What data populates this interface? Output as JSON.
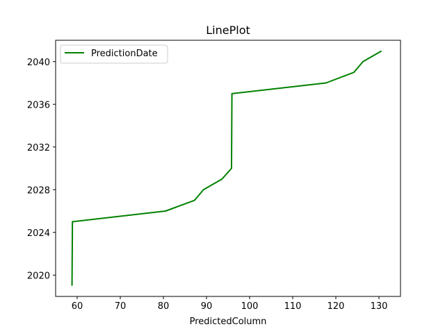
{
  "chart_data": {
    "type": "line",
    "title": "LinePlot",
    "xlabel": "PredictedColumn",
    "ylabel": "",
    "xlim": [
      55,
      135
    ],
    "ylim": [
      2018,
      2042
    ],
    "xticks": [
      60,
      70,
      80,
      90,
      100,
      110,
      120,
      130
    ],
    "yticks": [
      2020,
      2024,
      2028,
      2032,
      2036,
      2040
    ],
    "grid": false,
    "legend_position": "upper-left",
    "series": [
      {
        "name": "PredictionDate",
        "color": "#008000",
        "points": [
          {
            "x": 58.8,
            "y": 2019
          },
          {
            "x": 58.9,
            "y": 2025
          },
          {
            "x": 80.5,
            "y": 2026
          },
          {
            "x": 87.2,
            "y": 2027
          },
          {
            "x": 89.3,
            "y": 2028
          },
          {
            "x": 93.6,
            "y": 2029
          },
          {
            "x": 95.8,
            "y": 2030
          },
          {
            "x": 95.9,
            "y": 2037
          },
          {
            "x": 117.7,
            "y": 2038
          },
          {
            "x": 124.2,
            "y": 2039
          },
          {
            "x": 126.3,
            "y": 2040
          },
          {
            "x": 130.6,
            "y": 2041
          }
        ]
      }
    ]
  }
}
